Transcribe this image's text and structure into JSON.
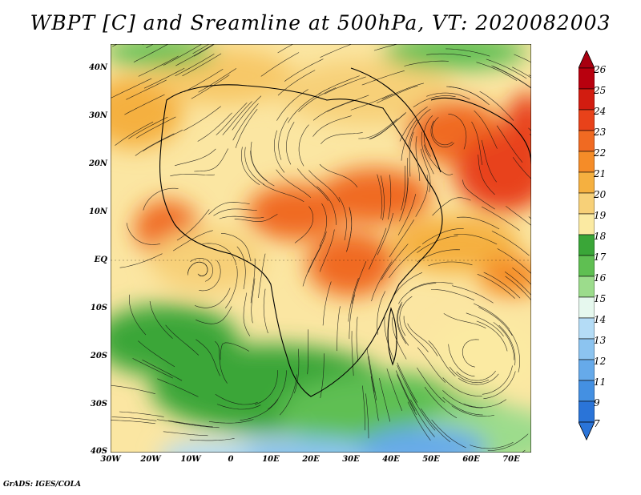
{
  "title": "WBPT [C] and Sreamline at 500hPa, VT: 2020082003",
  "footer": "GrADS: IGES/COLA",
  "lat_labels": [
    "40N",
    "30N",
    "20N",
    "10N",
    "EQ",
    "10S",
    "20S",
    "30S",
    "40S"
  ],
  "lat_values": [
    40,
    30,
    20,
    10,
    0,
    -10,
    -20,
    -30,
    -40
  ],
  "lon_labels": [
    "30W",
    "20W",
    "10W",
    "0",
    "10E",
    "20E",
    "30E",
    "40E",
    "50E",
    "60E",
    "70E"
  ],
  "lon_values": [
    -30,
    -20,
    -10,
    0,
    10,
    20,
    30,
    40,
    50,
    60,
    70
  ],
  "colorbar": {
    "labels": [
      "26",
      "25",
      "24",
      "23",
      "22",
      "21",
      "20",
      "19",
      "18",
      "17",
      "16",
      "15",
      "14",
      "13",
      "12",
      "11",
      "9",
      "7"
    ],
    "colors": [
      "#b8000e",
      "#d21c10",
      "#e8421a",
      "#f06a22",
      "#f58c28",
      "#f5b040",
      "#f7d078",
      "#fbeaa2",
      "#3aa638",
      "#5fbf52",
      "#9cdc8c",
      "#e6f8ee",
      "#b4dcf6",
      "#8cc4f0",
      "#66aaea",
      "#4490e2",
      "#2a74d8"
    ],
    "arrow_top": "#a80010",
    "arrow_bottom": "#2a74d8"
  },
  "map_data": {
    "variable": "WBPT [C]",
    "level": "500hPa",
    "valid_time": "2020082003",
    "lon_range": [
      -30,
      75
    ],
    "lat_range": [
      -40,
      45
    ]
  }
}
